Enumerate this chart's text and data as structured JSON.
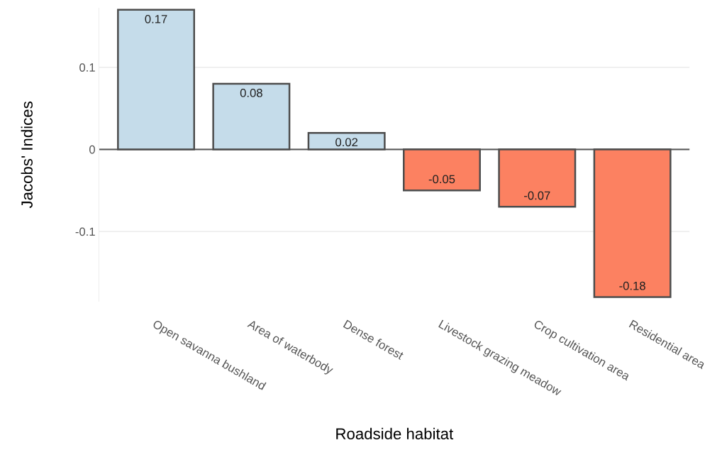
{
  "chart_data": {
    "type": "bar",
    "xlabel": "Roadside habitat",
    "ylabel": "Jacobs' Indices",
    "categories": [
      "Open savanna bushland",
      "Area of waterbody",
      "Dense forest",
      "Livestock grazing meadow",
      "Crop cultivation area",
      "Residential area"
    ],
    "values": [
      0.17,
      0.08,
      0.02,
      -0.05,
      -0.07,
      -0.18
    ],
    "colors": [
      "#c5dcea",
      "#c5dcea",
      "#c5dcea",
      "#fc8161",
      "#fc8161",
      "#fc8161"
    ],
    "data_labels": true,
    "ylim": [
      -0.185,
      0.172
    ],
    "yticks": [
      -0.1,
      0,
      0.1
    ],
    "grid": "y",
    "ref_lines": [
      {
        "axis": "y",
        "value": 0,
        "color": "#555555"
      }
    ]
  }
}
